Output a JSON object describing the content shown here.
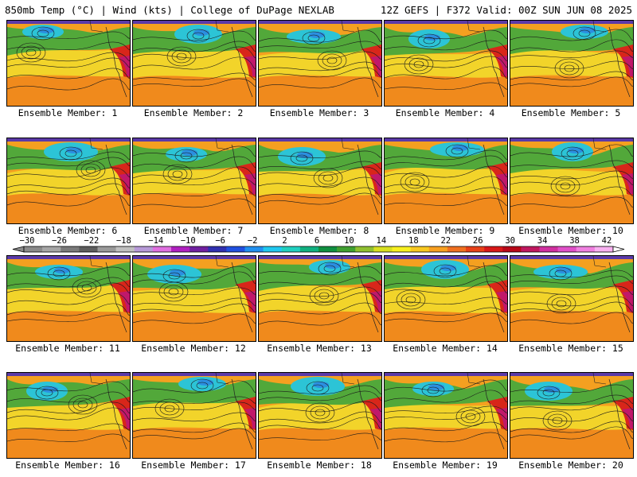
{
  "header": {
    "left": "850mb Temp (°C) | Wind (kts) | College of DuPage NEXLAB",
    "right": "12Z GEFS | F372 Valid: 00Z SUN JUN 08 2025"
  },
  "colorbar": {
    "labels": [
      "−30",
      "−26",
      "−22",
      "−18",
      "−14",
      "−10",
      "−6",
      "−2",
      "2",
      "6",
      "10",
      "14",
      "18",
      "22",
      "26",
      "30",
      "34",
      "38",
      "42"
    ],
    "colors": [
      "#8a8a8a",
      "#a6a6a6",
      "#7a7a7a",
      "#5e5e5e",
      "#9a9a9a",
      "#c0c0c0",
      "#b79ad8",
      "#e070e0",
      "#b020c0",
      "#7020a0",
      "#3030b0",
      "#2050e0",
      "#2090f0",
      "#20c8f0",
      "#20d0c0",
      "#10b080",
      "#109040",
      "#40a030",
      "#90c030",
      "#d8e020",
      "#f8f020",
      "#f8c820",
      "#f8a020",
      "#f07020",
      "#e84018",
      "#d81818",
      "#b80818",
      "#c01860",
      "#d030a0",
      "#e050c8",
      "#f080e0",
      "#f8b0f0"
    ]
  },
  "members": [
    {
      "label": "Ensemble Member: 1"
    },
    {
      "label": "Ensemble Member: 2"
    },
    {
      "label": "Ensemble Member: 3"
    },
    {
      "label": "Ensemble Member: 4"
    },
    {
      "label": "Ensemble Member: 5"
    },
    {
      "label": "Ensemble Member: 6"
    },
    {
      "label": "Ensemble Member: 7"
    },
    {
      "label": "Ensemble Member: 8"
    },
    {
      "label": "Ensemble Member: 9"
    },
    {
      "label": "Ensemble Member: 10"
    },
    {
      "label": "Ensemble Member: 11"
    },
    {
      "label": "Ensemble Member: 12"
    },
    {
      "label": "Ensemble Member: 13"
    },
    {
      "label": "Ensemble Member: 14"
    },
    {
      "label": "Ensemble Member: 15"
    },
    {
      "label": "Ensemble Member: 16"
    },
    {
      "label": "Ensemble Member: 17"
    },
    {
      "label": "Ensemble Member: 18"
    },
    {
      "label": "Ensemble Member: 19"
    },
    {
      "label": "Ensemble Member: 20"
    }
  ]
}
